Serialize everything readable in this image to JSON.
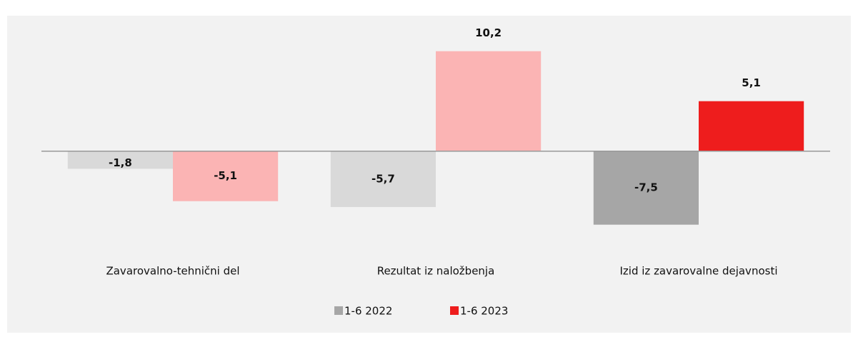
{
  "chart_data": {
    "type": "bar",
    "categories": [
      "Zavarovalno-tehnični del",
      "Rezultat iz naložbenja",
      "Izid iz zavarovalne dejavnosti"
    ],
    "series": [
      {
        "name": "1-6 2022",
        "color": "#a6a6a6",
        "colors": [
          "#d9d9d9",
          "#d9d9d9",
          "#a6a6a6"
        ],
        "values": [
          -1.8,
          -5.7,
          -7.5
        ],
        "value_labels": [
          "-1,8",
          "-5,7",
          "-7,5"
        ]
      },
      {
        "name": "1-6 2023",
        "color": "#ee1d1d",
        "colors": [
          "#fbb4b4",
          "#fbb4b4",
          "#ee1d1d"
        ],
        "values": [
          -5.1,
          10.2,
          5.1
        ],
        "value_labels": [
          "-5,1",
          "10,2",
          "5,1"
        ]
      }
    ],
    "ylim": [
      -10,
      12
    ],
    "legend": "bottom"
  }
}
